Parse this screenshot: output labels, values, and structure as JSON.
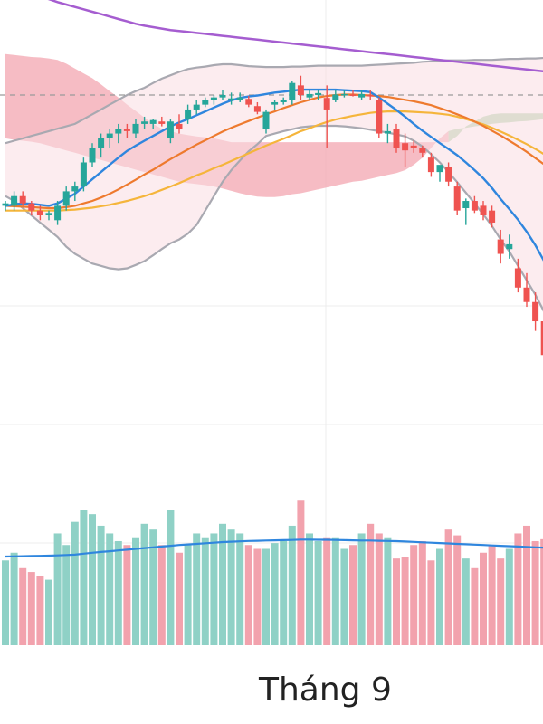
{
  "month_label": "Tháng 9",
  "colors": {
    "up": "#26a69a",
    "down": "#ef5350",
    "bb_band": "#a9a9b1",
    "ma_fast": "#2f86de",
    "ma_mid": "#ee7a2e",
    "ma_slow": "#f5b53b",
    "long_ma": "#a55dd0",
    "cloud_bear": "#f3a5b0",
    "cloud_bull": "#a9d3a7",
    "vol_up": "#8fd1c6",
    "vol_down": "#f2a2ad",
    "vol_ma": "#2f86de",
    "grid": "#ececec"
  },
  "chart_data": [
    {
      "type": "candlestick",
      "price_ylim": [
        0,
        100
      ],
      "reference_level": 85,
      "candles": [
        [
          62,
          63,
          61,
          62.5
        ],
        [
          62,
          65,
          61,
          64
        ],
        [
          64,
          65,
          62,
          62.5
        ],
        [
          62.5,
          63,
          60,
          61
        ],
        [
          61,
          62,
          59,
          60
        ],
        [
          60,
          61,
          59,
          60.5
        ],
        [
          59,
          63,
          58,
          62
        ],
        [
          62,
          66,
          61,
          65
        ],
        [
          65,
          67,
          63,
          66
        ],
        [
          66,
          72,
          65,
          71
        ],
        [
          71,
          75,
          70,
          74
        ],
        [
          74,
          77,
          72,
          76
        ],
        [
          76,
          78,
          74,
          77
        ],
        [
          77,
          79,
          75,
          78
        ],
        [
          78,
          79,
          76,
          77.5
        ],
        [
          77,
          80,
          76,
          79
        ],
        [
          79,
          80.5,
          78,
          79.5
        ],
        [
          79,
          80,
          78,
          79.8
        ],
        [
          79.5,
          80.5,
          78.5,
          79
        ],
        [
          76,
          80,
          75,
          79.5
        ],
        [
          79,
          81,
          77,
          78
        ],
        [
          80,
          83,
          79,
          82
        ],
        [
          82,
          84,
          81,
          83
        ],
        [
          83,
          84.5,
          82.5,
          84
        ],
        [
          84,
          85,
          83,
          84.5
        ],
        [
          84.5,
          86,
          84,
          85
        ],
        [
          84,
          85.5,
          83,
          84.3
        ],
        [
          84,
          85.5,
          83.5,
          84.5
        ],
        [
          84.2,
          84.8,
          82.5,
          83
        ],
        [
          82.7,
          83.5,
          81,
          81.5
        ],
        [
          78,
          82,
          77,
          81.5
        ],
        [
          83,
          84,
          82,
          83.5
        ],
        [
          83.5,
          84.5,
          83,
          84
        ],
        [
          84,
          88,
          83,
          87.5
        ],
        [
          87,
          89,
          84,
          85
        ],
        [
          84.5,
          86,
          84,
          85.2
        ],
        [
          85,
          86,
          84,
          85.4
        ],
        [
          84.4,
          87,
          74,
          82
        ],
        [
          84,
          86,
          83.5,
          85.1
        ],
        [
          85,
          86,
          84.5,
          85.2
        ],
        [
          85.1,
          86,
          84.7,
          84.9
        ],
        [
          84.5,
          86,
          84,
          85.2
        ],
        [
          85,
          86,
          84,
          84.8
        ],
        [
          84,
          84.5,
          76,
          77
        ],
        [
          77,
          79,
          75,
          77.5
        ],
        [
          78,
          79,
          73,
          74
        ],
        [
          75,
          77,
          70,
          73.5
        ],
        [
          74.5,
          75.5,
          73,
          74
        ],
        [
          74,
          74.5,
          72,
          73
        ],
        [
          72,
          73,
          68,
          69
        ],
        [
          69,
          70,
          67,
          70.5
        ],
        [
          70,
          71,
          66,
          67
        ],
        [
          66,
          67,
          60,
          61
        ],
        [
          61.5,
          63.5,
          58,
          63
        ],
        [
          63,
          64,
          60.5,
          61
        ],
        [
          62,
          63,
          59,
          60
        ],
        [
          61,
          62,
          57.5,
          58.5
        ],
        [
          55,
          57,
          50,
          52
        ],
        [
          53,
          56,
          51,
          54
        ],
        [
          49,
          51,
          44,
          45
        ],
        [
          45,
          48,
          41,
          42
        ],
        [
          42,
          44,
          36,
          38
        ],
        [
          38,
          39,
          29,
          31
        ]
      ],
      "bollinger": {
        "upper": [
          75,
          75.5,
          76,
          76.5,
          77,
          77.5,
          78,
          78.5,
          79,
          80,
          81,
          82,
          83,
          84,
          85,
          85.8,
          86.5,
          87.5,
          88.4,
          89.1,
          89.8,
          90.4,
          90.7,
          90.9,
          91.2,
          91.4,
          91.4,
          91.2,
          91,
          90.9,
          90.8,
          90.8,
          90.8,
          90.9,
          90.9,
          91,
          91.1,
          91.1,
          91.1,
          91.1,
          91.1,
          91.1,
          91.2,
          91.3,
          91.4,
          91.5,
          91.6,
          91.7,
          91.9,
          92,
          92.1,
          92.2,
          92.2,
          92.2,
          92.3,
          92.3,
          92.3,
          92.4,
          92.5,
          92.5,
          92.6,
          92.6,
          92.7
        ],
        "lower": [
          64,
          63,
          61.5,
          60,
          58.5,
          57,
          55.5,
          53.5,
          52,
          51,
          50,
          49.5,
          49,
          48.8,
          49,
          49.7,
          50.5,
          51.7,
          53,
          54.2,
          55,
          56.2,
          58,
          61,
          64,
          67,
          69.4,
          71.4,
          73.3,
          74.8,
          76.5,
          77,
          77.5,
          77.9,
          78.3,
          78.5,
          78.6,
          78.6,
          78.6,
          78.5,
          78.3,
          78.1,
          77.8,
          77.5,
          77.2,
          76.8,
          76.4,
          75.5,
          74.3,
          72.7,
          71,
          69,
          66.9,
          64.7,
          62.5,
          60.2,
          57.8,
          55,
          52.5,
          49.5,
          46.5,
          43.5,
          40
        ]
      },
      "ma_fast": [
        62,
        62.3,
        62.5,
        62.4,
        62.2,
        62,
        62.5,
        63.5,
        64.5,
        66,
        67.5,
        69,
        70.5,
        72,
        73.4,
        74.5,
        75.5,
        76.5,
        77.5,
        78.5,
        79.3,
        80,
        80.8,
        81.6,
        82.4,
        83.2,
        83.9,
        84.4,
        84.7,
        84.9,
        85.2,
        85.5,
        85.7,
        85.9,
        86.1,
        86.1,
        86.1,
        86.1,
        86.1,
        86,
        85.9,
        85.8,
        85.6,
        84.5,
        83.2,
        81.9,
        80.5,
        79,
        77.6,
        76.3,
        75,
        73.8,
        72.5,
        71,
        69.4,
        67.7,
        65.7,
        63.4,
        61.3,
        59.1,
        56.6,
        53.8,
        50.5
      ],
      "ma_mid": [
        62,
        61.9,
        61.8,
        61.7,
        61.6,
        61.5,
        61.5,
        61.7,
        62,
        62.5,
        63,
        63.7,
        64.5,
        65.4,
        66.4,
        67.4,
        68.5,
        69.5,
        70.6,
        71.7,
        72.7,
        73.7,
        74.7,
        75.6,
        76.5,
        77.4,
        78.2,
        78.9,
        79.6,
        80.3,
        81,
        81.6,
        82.3,
        82.9,
        83.5,
        84,
        84.5,
        84.8,
        85,
        85.1,
        85.1,
        85,
        84.9,
        84.8,
        84.6,
        84.3,
        84,
        83.7,
        83.3,
        82.9,
        82.3,
        81.7,
        81,
        80.3,
        79.5,
        78.6,
        77.6,
        76.6,
        75.5,
        74.4,
        73.2,
        71.9,
        70.6
      ],
      "ma_slow": [
        61,
        61,
        61,
        61,
        61,
        61,
        61,
        61.1,
        61.2,
        61.4,
        61.6,
        61.9,
        62.2,
        62.6,
        63,
        63.5,
        64,
        64.6,
        65.3,
        66,
        66.7,
        67.5,
        68.3,
        69,
        69.8,
        70.5,
        71.3,
        72.1,
        72.9,
        73.7,
        74.5,
        75.2,
        75.9,
        76.7,
        77.5,
        78.1,
        78.8,
        79.4,
        79.9,
        80.3,
        80.7,
        81,
        81.3,
        81.5,
        81.6,
        81.6,
        81.6,
        81.5,
        81.4,
        81.3,
        81.1,
        80.9,
        80.5,
        80,
        79.5,
        78.9,
        78.2,
        77.4,
        76.6,
        75.7,
        74.8,
        73.8,
        72.7
      ],
      "long_ma": [
        107.5,
        107,
        106.5,
        106,
        105.4,
        104.9,
        104.3,
        103.8,
        103.3,
        102.8,
        102.3,
        101.8,
        101.3,
        100.8,
        100.3,
        99.8,
        99.4,
        99.1,
        98.8,
        98.5,
        98.3,
        98.1,
        97.9,
        97.7,
        97.5,
        97.3,
        97.1,
        96.9,
        96.7,
        96.5,
        96.3,
        96.1,
        95.9,
        95.7,
        95.5,
        95.3,
        95.1,
        94.9,
        94.7,
        94.5,
        94.3,
        94.1,
        93.9,
        93.7,
        93.5,
        93.3,
        93.1,
        92.9,
        92.7,
        92.5,
        92.3,
        92.1,
        91.9,
        91.7,
        91.5,
        91.3,
        91.1,
        90.9,
        90.7,
        90.5,
        90.3,
        90.1,
        89.9
      ],
      "cloud": {
        "top": [
          93.5,
          93.3,
          93.1,
          92.9,
          92.8,
          92.6,
          92.3,
          91.5,
          90.5,
          89.5,
          88.5,
          87.2,
          85.8,
          84.5,
          83,
          81.7,
          80.3,
          79,
          78,
          77.5,
          77,
          76.7,
          76.4,
          76.2,
          76,
          75.6,
          75.2,
          75.2,
          75.2,
          75.2,
          75.2,
          75.2,
          75.2,
          75.2,
          75.2,
          75.2,
          75.2,
          75.2,
          75.2,
          75.2,
          75.2,
          75.2,
          75.2,
          75.2,
          75.2,
          75.2,
          75.2,
          75.2,
          75.2,
          75.2,
          75.2,
          75.2,
          76.5,
          78.5,
          79.5,
          80.5,
          81,
          81.2,
          81.2,
          81.2,
          81.2,
          81.2,
          81.2
        ],
        "bottom": [
          76,
          75.7,
          75.5,
          75.3,
          75,
          74.5,
          74,
          73.5,
          73,
          72.5,
          72,
          71.5,
          71,
          70.5,
          70,
          69.5,
          69,
          68.5,
          68,
          67.5,
          67,
          66.7,
          66.5,
          66.3,
          66,
          65.6,
          65.1,
          64.6,
          64.2,
          63.9,
          63.8,
          63.8,
          64,
          64.4,
          64.6,
          65,
          65.4,
          65.8,
          66.2,
          66.6,
          67,
          67.2,
          67.6,
          68,
          68.4,
          68.8,
          69.4,
          70.5,
          72,
          74,
          76,
          77.5,
          78,
          78.2,
          78.5,
          78.7,
          79,
          79.2,
          79.3,
          79.5,
          79.6,
          79.8,
          80
        ],
        "bullish_from_index": 51
      },
      "volume_ylim": [
        0,
        100
      ],
      "volume": [
        44,
        48,
        40,
        38,
        36,
        34,
        58,
        52,
        64,
        70,
        68,
        62,
        58,
        54,
        52,
        56,
        63,
        60,
        52,
        70,
        48,
        52,
        58,
        56,
        58,
        63,
        60,
        58,
        52,
        50,
        50,
        53,
        54,
        62,
        75,
        58,
        54,
        56,
        56,
        50,
        52,
        58,
        63,
        58,
        56,
        45,
        46,
        52,
        54,
        44,
        50,
        60,
        57,
        45,
        40,
        48,
        52,
        45,
        50,
        58,
        62,
        54,
        55
      ],
      "volume_ma": [
        46,
        46.1,
        46.2,
        46.3,
        46.4,
        46.5,
        46.6,
        46.8,
        47,
        47.5,
        48,
        48.4,
        48.8,
        49.2,
        49.6,
        50,
        50.4,
        50.8,
        51.2,
        51.6,
        52,
        52.3,
        52.6,
        52.9,
        53.2,
        53.5,
        53.7,
        53.9,
        54.1,
        54.2,
        54.3,
        54.4,
        54.5,
        54.6,
        54.8,
        54.8,
        54.7,
        54.7,
        54.6,
        54.5,
        54.4,
        54.3,
        54.3,
        54.2,
        54.1,
        54,
        53.8,
        53.6,
        53.4,
        53.2,
        53,
        52.8,
        52.6,
        52.4,
        52.2,
        52,
        51.8,
        51.6,
        51.4,
        51.2,
        51,
        50.8,
        50.6
      ]
    }
  ]
}
